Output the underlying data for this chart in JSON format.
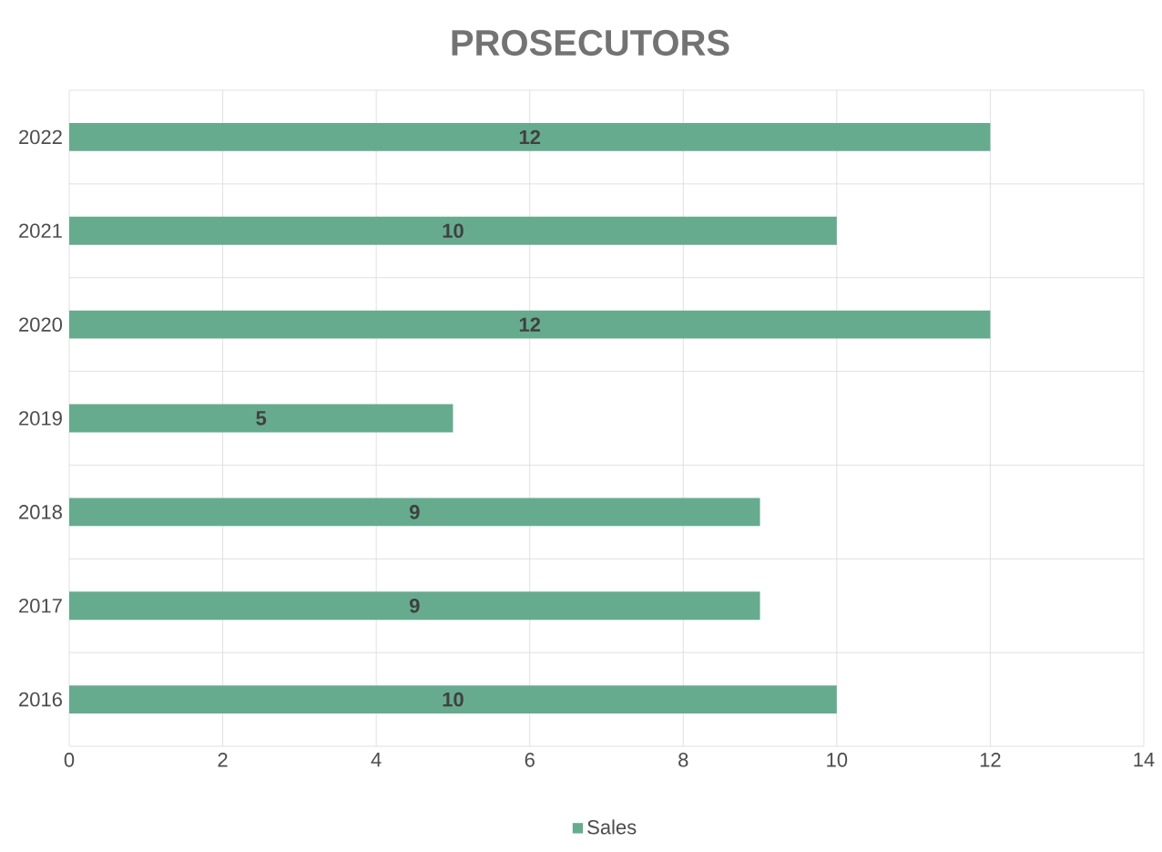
{
  "chart_data": {
    "type": "bar",
    "orientation": "horizontal",
    "title": "PROSECUTORS",
    "categories": [
      "2022",
      "2021",
      "2020",
      "2019",
      "2018",
      "2017",
      "2016"
    ],
    "series": [
      {
        "name": "Sales",
        "color": "#67ab8f",
        "values": [
          12,
          10,
          12,
          5,
          9,
          9,
          10
        ]
      }
    ],
    "xlim": [
      0,
      14
    ],
    "xticks": [
      0,
      2,
      4,
      6,
      8,
      10,
      12,
      14
    ],
    "grid": true,
    "legend": "bottom",
    "data_labels": true
  }
}
